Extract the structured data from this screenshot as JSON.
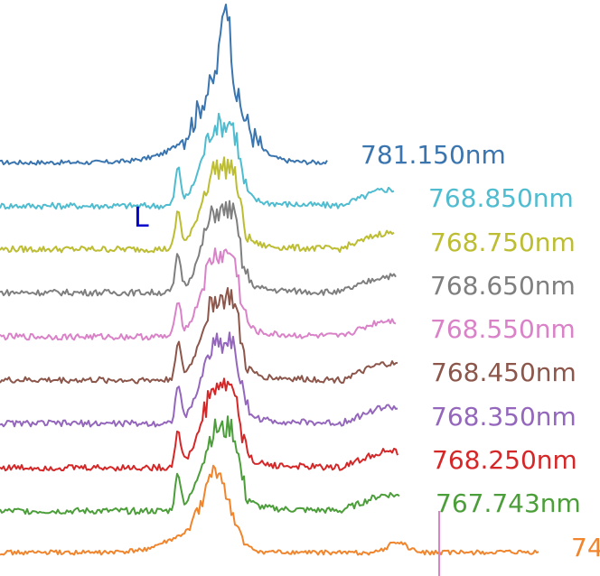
{
  "chart_data": {
    "type": "line",
    "layout": "stacked-offset spectra",
    "marker": {
      "text": "L",
      "color": "#0000cc"
    },
    "series": [
      {
        "name": "781.150nm",
        "color": "#3a75b0"
      },
      {
        "name": "768.850nm",
        "color": "#4fbcd0"
      },
      {
        "name": "768.750nm",
        "color": "#bcbd32"
      },
      {
        "name": "768.650nm",
        "color": "#7f7f7f"
      },
      {
        "name": "768.550nm",
        "color": "#da82c8"
      },
      {
        "name": "768.450nm",
        "color": "#8c564b"
      },
      {
        "name": "768.350nm",
        "color": "#9467bd"
      },
      {
        "name": "768.250nm",
        "color": "#d62728"
      },
      {
        "name": "767.743nm",
        "color": "#4c9e3a"
      },
      {
        "name": "74",
        "color": "#f0852d"
      }
    ]
  }
}
